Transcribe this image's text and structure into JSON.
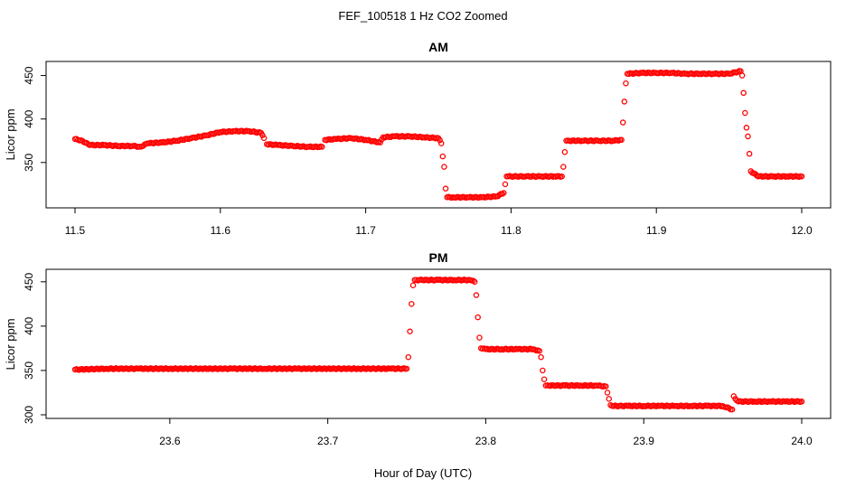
{
  "figure": {
    "title": "FEF_100518  1 Hz CO2 Zoomed",
    "xlabel": "Hour of Day (UTC)"
  },
  "chart_data": [
    {
      "type": "scatter",
      "title": "AM",
      "xlabel": "",
      "ylabel": "Licor ppm",
      "xlim": [
        11.5,
        12.0
      ],
      "ylim": [
        302,
        462
      ],
      "xticks": [
        "11.5",
        "11.6",
        "11.7",
        "11.8",
        "11.9",
        "12.0"
      ],
      "yticks": [
        "350",
        "400",
        "450"
      ],
      "xtick_values": [
        11.5,
        11.6,
        11.7,
        11.8,
        11.9,
        12.0
      ],
      "ytick_values": [
        350,
        400,
        450
      ],
      "color": "#ff0000",
      "marker": "open-circle",
      "series": [
        {
          "x": [
            11.5,
            11.505,
            11.51,
            11.52,
            11.53,
            11.54,
            11.545,
            11.55,
            11.56,
            11.57,
            11.58,
            11.59,
            11.6,
            11.61,
            11.62,
            11.628,
            11.63,
            11.632,
            11.64,
            11.65,
            11.66,
            11.67,
            11.672,
            11.68,
            11.69,
            11.7,
            11.71,
            11.712,
            11.72,
            11.73,
            11.74,
            11.75,
            11.752,
            11.753,
            11.754,
            11.755,
            11.756,
            11.76,
            11.77,
            11.78,
            11.79,
            11.795,
            11.796,
            11.797,
            11.798,
            11.8,
            11.81,
            11.82,
            11.83,
            11.835,
            11.836,
            11.837,
            11.838,
            11.84,
            11.85,
            11.86,
            11.87,
            11.876,
            11.877,
            11.878,
            11.879,
            11.88,
            11.89,
            11.9,
            11.91,
            11.92,
            11.93,
            11.94,
            11.95,
            11.958,
            11.959,
            11.96,
            11.961,
            11.962,
            11.963,
            11.964,
            11.965,
            11.97,
            11.98,
            11.99,
            12.0
          ],
          "y": [
            377,
            375,
            370,
            370,
            369,
            369,
            368,
            372,
            373,
            375,
            378,
            381,
            385,
            386,
            386,
            384,
            378,
            371,
            370,
            369,
            368,
            368,
            376,
            377,
            378,
            376,
            373,
            379,
            380,
            380,
            379,
            378,
            372,
            357,
            345,
            320,
            310,
            310,
            310,
            310,
            311,
            315,
            325,
            334,
            334,
            334,
            334,
            334,
            334,
            334,
            345,
            362,
            375,
            375,
            375,
            375,
            375,
            376,
            396,
            420,
            441,
            452,
            453,
            453,
            453,
            452,
            452,
            452,
            452,
            455,
            450,
            430,
            407,
            390,
            380,
            360,
            340,
            334,
            334,
            334,
            334
          ]
        }
      ]
    },
    {
      "type": "scatter",
      "title": "PM",
      "xlabel": "",
      "ylabel": "Licor ppm",
      "xlim": [
        23.54,
        24.0
      ],
      "ylim": [
        300,
        460
      ],
      "xticks": [
        "23.6",
        "23.7",
        "23.8",
        "23.9",
        "24.0"
      ],
      "yticks": [
        "300",
        "350",
        "400",
        "450"
      ],
      "xtick_values": [
        23.6,
        23.7,
        23.8,
        23.9,
        24.0
      ],
      "ytick_values": [
        300,
        350,
        400,
        450
      ],
      "color": "#ff0000",
      "marker": "open-circle",
      "series": [
        {
          "x": [
            23.54,
            23.56,
            23.58,
            23.6,
            23.62,
            23.64,
            23.66,
            23.68,
            23.7,
            23.72,
            23.74,
            23.75,
            23.751,
            23.752,
            23.753,
            23.754,
            23.755,
            23.76,
            23.77,
            23.78,
            23.79,
            23.793,
            23.794,
            23.795,
            23.796,
            23.797,
            23.8,
            23.81,
            23.82,
            23.83,
            23.834,
            23.835,
            23.836,
            23.837,
            23.838,
            23.84,
            23.85,
            23.86,
            23.87,
            23.876,
            23.877,
            23.878,
            23.879,
            23.88,
            23.89,
            23.9,
            23.91,
            23.92,
            23.93,
            23.94,
            23.95,
            23.956,
            23.957,
            23.958,
            23.96,
            23.97,
            23.98,
            23.99,
            24.0
          ],
          "y": [
            351,
            352,
            352,
            352,
            352,
            352,
            352,
            352,
            352,
            352,
            352,
            352,
            365,
            394,
            425,
            446,
            452,
            452,
            452,
            452,
            452,
            450,
            435,
            410,
            387,
            375,
            374,
            374,
            374,
            374,
            372,
            365,
            350,
            340,
            333,
            333,
            333,
            333,
            333,
            332,
            325,
            318,
            311,
            310,
            310,
            310,
            310,
            310,
            310,
            310,
            310,
            306,
            321,
            318,
            315,
            315,
            315,
            315,
            315
          ]
        }
      ]
    }
  ]
}
